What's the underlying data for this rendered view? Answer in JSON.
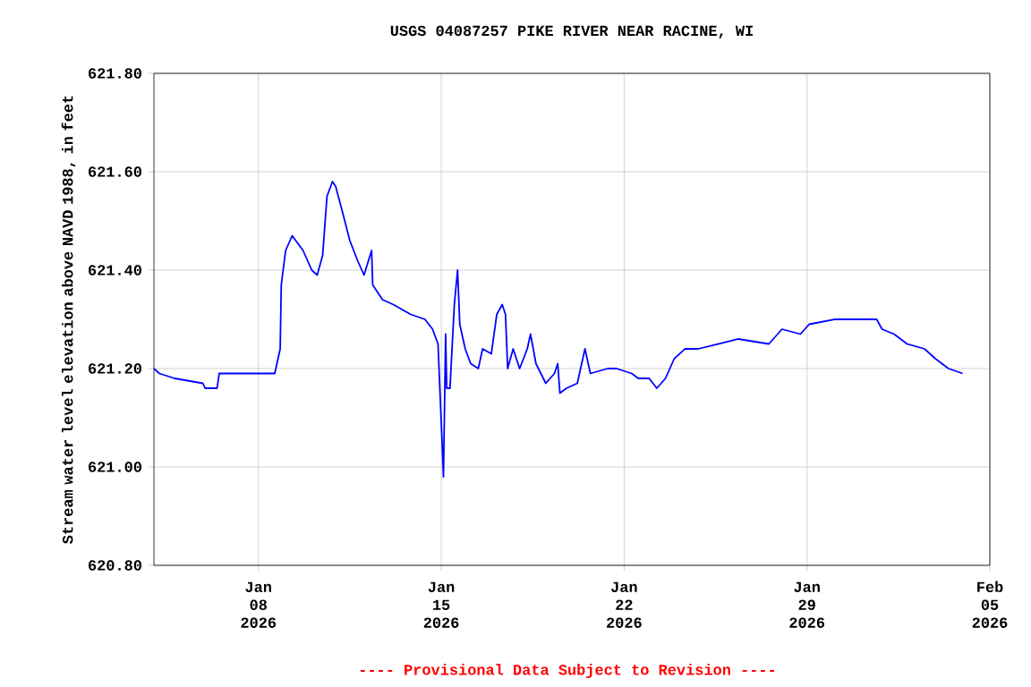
{
  "chart_data": {
    "type": "line",
    "title": "USGS 04087257 PIKE RIVER NEAR RACINE, WI",
    "ylabel": "Stream water level elevation above NAVD 1988, in feet",
    "annotations": [
      "---- Provisional Data Subject to Revision ----"
    ],
    "x": [
      "2026-01-04T00:00",
      "2026-01-04T05:00",
      "2026-01-04T19:00",
      "2026-01-05T21:00",
      "2026-01-05T23:00",
      "2026-01-06T10:00",
      "2026-01-06T12:00",
      "2026-01-08T15:00",
      "2026-01-08T20:00",
      "2026-01-08T21:00",
      "2026-01-09T01:00",
      "2026-01-09T07:00",
      "2026-01-09T17:00",
      "2026-01-10T01:00",
      "2026-01-10T06:00",
      "2026-01-10T11:00",
      "2026-01-10T15:00",
      "2026-01-10T20:00",
      "2026-01-10T23:00",
      "2026-01-11T05:00",
      "2026-01-11T12:00",
      "2026-01-11T19:00",
      "2026-01-12T01:00",
      "2026-01-12T08:00",
      "2026-01-12T09:00",
      "2026-01-12T18:00",
      "2026-01-13T04:00",
      "2026-01-13T20:00",
      "2026-01-14T09:00",
      "2026-01-14T16:00",
      "2026-01-14T21:00",
      "2026-01-15T00:00",
      "2026-01-15T02:00",
      "2026-01-15T04:00",
      "2026-01-15T05:00",
      "2026-01-15T08:00",
      "2026-01-15T12:00",
      "2026-01-15T15:00",
      "2026-01-15T17:00",
      "2026-01-15T22:00",
      "2026-01-16T03:00",
      "2026-01-16T10:00",
      "2026-01-16T14:00",
      "2026-01-16T22:00",
      "2026-01-17T03:00",
      "2026-01-17T08:00",
      "2026-01-17T11:00",
      "2026-01-17T13:00",
      "2026-01-17T18:00",
      "2026-01-18T00:00",
      "2026-01-18T07:00",
      "2026-01-18T10:00",
      "2026-01-18T15:00",
      "2026-01-19T00:00",
      "2026-01-19T08:00",
      "2026-01-19T11:00",
      "2026-01-19T13:00",
      "2026-01-19T19:00",
      "2026-01-20T05:00",
      "2026-01-20T12:00",
      "2026-01-20T17:00",
      "2026-01-21T09:00",
      "2026-01-21T17:00",
      "2026-01-22T07:00",
      "2026-01-22T13:00",
      "2026-01-22T23:00",
      "2026-01-23T06:00",
      "2026-01-23T14:00",
      "2026-01-23T22:00",
      "2026-01-24T08:00",
      "2026-01-24T20:00",
      "2026-01-25T15:00",
      "2026-01-26T09:00",
      "2026-01-27T13:00",
      "2026-01-28T01:00",
      "2026-01-28T18:00",
      "2026-01-29T02:00",
      "2026-01-30T02:00",
      "2026-01-31T00:00",
      "2026-01-31T16:00",
      "2026-01-31T21:00",
      "2026-02-01T08:00",
      "2026-02-01T20:00",
      "2026-02-02T12:00",
      "2026-02-02T22:00",
      "2026-02-03T10:00",
      "2026-02-03T23:00"
    ],
    "series": [
      {
        "color": "#0000ff",
        "values": [
          621.2,
          621.19,
          621.18,
          621.17,
          621.16,
          621.16,
          621.19,
          621.19,
          621.24,
          621.37,
          621.44,
          621.47,
          621.44,
          621.4,
          621.39,
          621.43,
          621.55,
          621.58,
          621.57,
          621.52,
          621.46,
          621.42,
          621.39,
          621.44,
          621.37,
          621.34,
          621.33,
          621.31,
          621.3,
          621.28,
          621.25,
          621.09,
          620.98,
          621.27,
          621.16,
          621.16,
          621.33,
          621.4,
          621.29,
          621.24,
          621.21,
          621.2,
          621.24,
          621.23,
          621.31,
          621.33,
          621.31,
          621.2,
          621.24,
          621.2,
          621.24,
          621.27,
          621.21,
          621.17,
          621.19,
          621.21,
          621.15,
          621.16,
          621.17,
          621.24,
          621.19,
          621.2,
          621.2,
          621.19,
          621.18,
          621.18,
          621.16,
          621.18,
          621.22,
          621.24,
          621.24,
          621.25,
          621.26,
          621.25,
          621.28,
          621.27,
          621.29,
          621.3,
          621.3,
          621.3,
          621.28,
          621.27,
          621.25,
          621.24,
          621.22,
          621.2,
          621.19
        ]
      }
    ],
    "xlim": [
      "2026-01-04",
      "2026-02-05"
    ],
    "xticks": [
      {
        "value": "2026-01-08",
        "label": "Jan 08 2026"
      },
      {
        "value": "2026-01-15",
        "label": "Jan 15 2026"
      },
      {
        "value": "2026-01-22",
        "label": "Jan 22 2026"
      },
      {
        "value": "2026-01-29",
        "label": "Jan 29 2026"
      },
      {
        "value": "2026-02-05",
        "label": "Feb 05 2026"
      }
    ],
    "ylim": [
      620.8,
      621.8
    ],
    "yticks": [
      {
        "value": 620.8,
        "label": "620.80"
      },
      {
        "value": 621.0,
        "label": "621.00"
      },
      {
        "value": 621.2,
        "label": "621.20"
      },
      {
        "value": 621.4,
        "label": "621.40"
      },
      {
        "value": 621.6,
        "label": "621.60"
      },
      {
        "value": 621.8,
        "label": "621.80"
      }
    ],
    "grid": true
  }
}
